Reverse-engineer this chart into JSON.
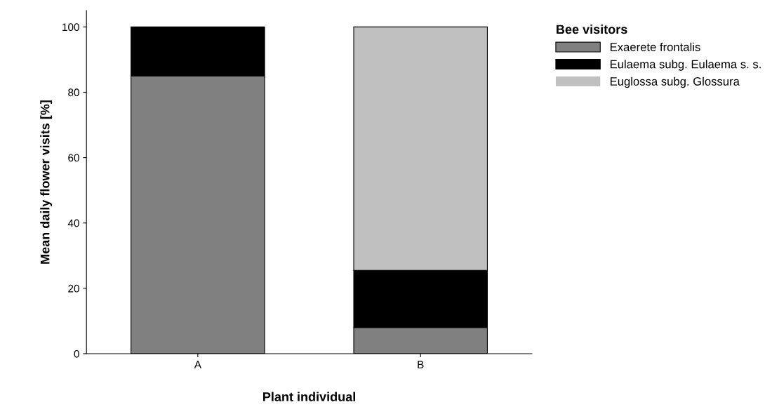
{
  "chart_data": {
    "type": "bar",
    "stacked": true,
    "xlabel": "Plant individual",
    "ylabel": "Mean daily flower visits [%]",
    "legend_title": "Bee visitors",
    "legend": "top right",
    "categories": [
      "A",
      "B"
    ],
    "series": [
      {
        "name": "Exaerete frontalis",
        "color": "#808080",
        "values": [
          85,
          8
        ]
      },
      {
        "name": "Eulaema subg. Eulaema s. s.",
        "color": "#000000",
        "values": [
          15,
          17.5
        ]
      },
      {
        "name": "Euglossa subg. Glossura",
        "color": "#c0c0c0",
        "values": [
          0,
          74.5
        ]
      }
    ],
    "ylim": [
      0,
      105
    ],
    "yticks": [
      0,
      20,
      40,
      60,
      80,
      100
    ],
    "grid": false
  }
}
